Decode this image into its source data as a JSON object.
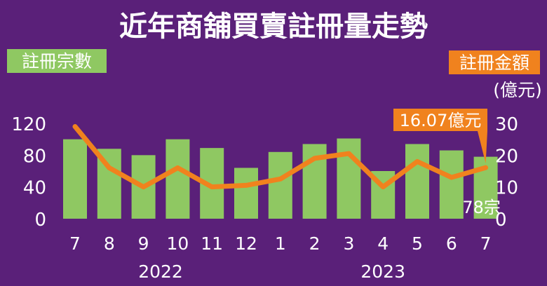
{
  "colors": {
    "background": "#5a2079",
    "bar": "#8fc862",
    "line": "#f0821e",
    "text": "#ffffff",
    "badge_green": "#8fc862",
    "badge_orange": "#f0821e"
  },
  "chart_data": {
    "type": "bar",
    "title": "近年商舖買賣註冊量走勢",
    "legend_left": "註冊宗數",
    "legend_right": "註冊金額",
    "right_unit": "(億元)",
    "categories": [
      "7",
      "8",
      "9",
      "10",
      "11",
      "12",
      "1",
      "2",
      "3",
      "4",
      "5",
      "6",
      "7"
    ],
    "year_labels": [
      {
        "label": "2022",
        "from_index": 0,
        "to_index": 5
      },
      {
        "label": "2023",
        "from_index": 6,
        "to_index": 12
      }
    ],
    "left_axis": {
      "ticks": [
        0,
        40,
        80,
        120
      ],
      "ylim": [
        0,
        120
      ]
    },
    "right_axis": {
      "ticks": [
        0,
        10,
        20,
        30
      ],
      "ylim": [
        0,
        30
      ]
    },
    "series": [
      {
        "name": "註冊宗數",
        "type": "bar",
        "axis": "left",
        "values": [
          100,
          88,
          80,
          100,
          89,
          64,
          84,
          94,
          101,
          60,
          94,
          86,
          78
        ]
      },
      {
        "name": "註冊金額",
        "type": "line",
        "axis": "right",
        "values": [
          29,
          16,
          10,
          16,
          10,
          10.5,
          12.5,
          19,
          20.5,
          10,
          18,
          13,
          16.07
        ]
      }
    ],
    "annotations": {
      "last_bar_label": "78宗",
      "last_line_label": "16.07億元"
    },
    "grid": false
  }
}
